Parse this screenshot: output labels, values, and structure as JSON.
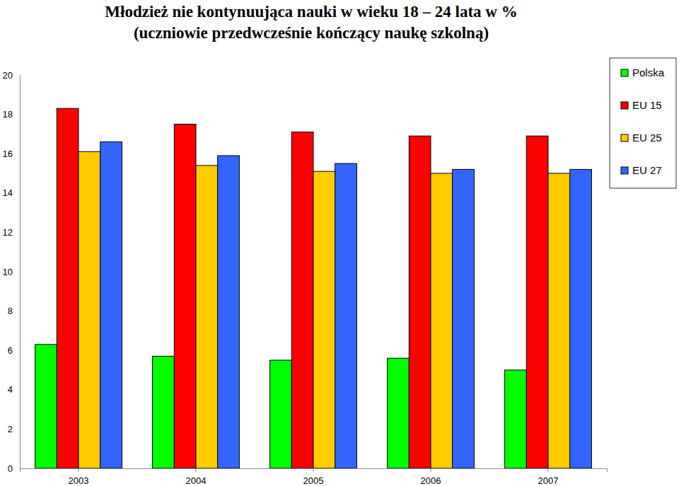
{
  "chart_data": {
    "type": "bar",
    "title": "Młodzież nie kontynuująca nauki w wieku 18 – 24 lata w %",
    "subtitle": "(uczniowie przedwcześnie kończący naukę szkolną)",
    "categories": [
      "2003",
      "2004",
      "2005",
      "2006",
      "2007"
    ],
    "series": [
      {
        "name": "Polska",
        "color": "#00ff00",
        "values": [
          6.3,
          5.7,
          5.5,
          5.6,
          5.0
        ]
      },
      {
        "name": "EU 15",
        "color": "#ff0000",
        "values": [
          18.3,
          17.5,
          17.1,
          16.9,
          16.9
        ]
      },
      {
        "name": "EU 25",
        "color": "#ffcc00",
        "values": [
          16.1,
          15.4,
          15.1,
          15.0,
          15.0
        ]
      },
      {
        "name": "EU 27",
        "color": "#3366ff",
        "values": [
          16.6,
          15.9,
          15.5,
          15.2,
          15.2
        ]
      }
    ],
    "ylim": [
      0,
      20
    ],
    "yticks": [
      0,
      2,
      4,
      6,
      8,
      10,
      12,
      14,
      16,
      18,
      20
    ],
    "grid": false,
    "legend": "top-right"
  }
}
